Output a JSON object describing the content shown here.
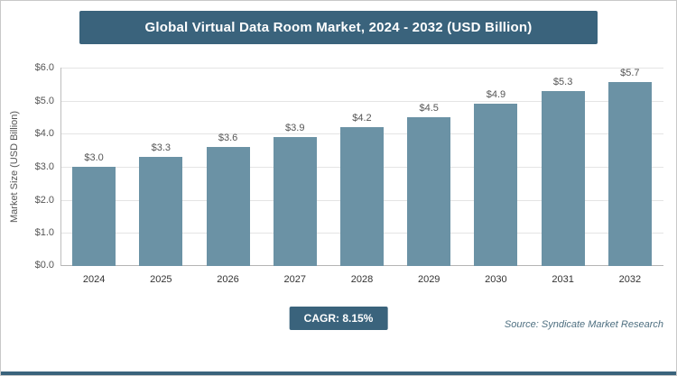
{
  "title": "Global Virtual Data Room Market, 2024 - 2032 (USD Billion)",
  "chart_data": {
    "type": "bar",
    "categories": [
      "2024",
      "2025",
      "2026",
      "2027",
      "2028",
      "2029",
      "2030",
      "2031",
      "2032"
    ],
    "values": [
      3.0,
      3.3,
      3.6,
      3.9,
      4.2,
      4.5,
      4.9,
      5.3,
      5.7
    ],
    "value_labels": [
      "$3.0",
      "$3.3",
      "$3.6",
      "$3.9",
      "$4.2",
      "$4.5",
      "$4.9",
      "$5.3",
      "$5.7"
    ],
    "title": "Global Virtual Data Room Market, 2024 - 2032 (USD Billion)",
    "xlabel": "",
    "ylabel": "Market Size (USD Billion)",
    "ylim": [
      0,
      6
    ],
    "yticks": [
      "$0.0",
      "$1.0",
      "$2.0",
      "$3.0",
      "$4.0",
      "$5.0",
      "$6.0"
    ],
    "grid": true,
    "legend": "none"
  },
  "colors": {
    "header_bg": "#3a637c",
    "bar": "#6b92a5",
    "cagr_bg": "#3a637c",
    "bottom_strip": "#3a637c"
  },
  "footer": {
    "cagr_label": "CAGR: 8.15%",
    "source": "Source: Syndicate Market Research"
  }
}
